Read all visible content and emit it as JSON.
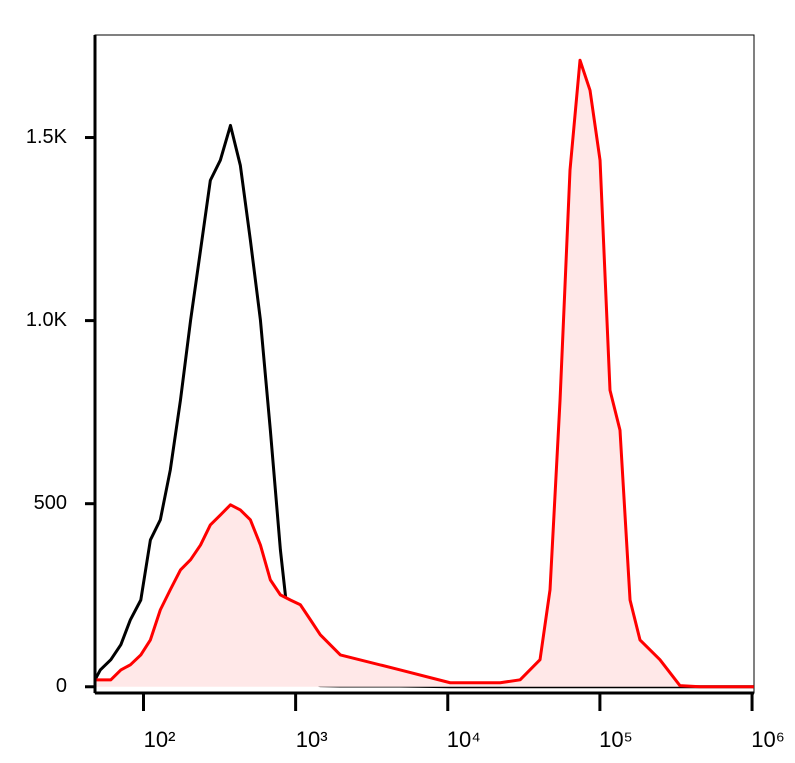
{
  "chart_data": {
    "type": "histogram-overlay",
    "xscale": "log",
    "xlim": [
      48,
      1030000
    ],
    "xticks": [
      {
        "value": 100,
        "label": "10²"
      },
      {
        "value": 1000,
        "label": "10³"
      },
      {
        "value": 10000,
        "label": "10⁴"
      },
      {
        "value": 100000,
        "label": "10⁵"
      },
      {
        "value": 1000000,
        "label": "10⁶"
      }
    ],
    "ylim": [
      -17,
      1780
    ],
    "yticks": [
      0,
      500,
      {
        "value": 1000,
        "label": "1.0K"
      },
      {
        "value": 1500,
        "label": "1.5K"
      }
    ],
    "x": [
      48,
      52,
      61,
      71,
      82,
      96,
      111,
      129,
      150,
      175,
      204,
      237,
      275,
      320,
      373,
      433,
      504,
      587,
      682,
      794,
      923,
      1074,
      1250,
      1453,
      1968,
      4870,
      10370,
      22100,
      29900,
      40400,
      47000,
      54700,
      63600,
      74000,
      86100,
      100200,
      116500,
      135500,
      157800,
      183400,
      248000,
      336000,
      454000,
      1028000
    ],
    "series": [
      {
        "color": "#000000",
        "fill": "none",
        "values": [
          19,
          46,
          74,
          115,
          183,
          237,
          401,
          456,
          592,
          783,
          1001,
          1192,
          1383,
          1438,
          1533,
          1424,
          1220,
          1001,
          701,
          374,
          128,
          33,
          11,
          3,
          2,
          2,
          0,
          0,
          0,
          0,
          0,
          0,
          0,
          0,
          0,
          0,
          0,
          0,
          0,
          0,
          0,
          0,
          0,
          0
        ]
      },
      {
        "color": "#ff0000",
        "fill": "#ffe8e8",
        "values": [
          19,
          19,
          19,
          46,
          60,
          87,
          128,
          210,
          265,
          319,
          347,
          387,
          442,
          469,
          497,
          483,
          456,
          387,
          292,
          251,
          237,
          224,
          183,
          142,
          87,
          46,
          11,
          11,
          19,
          74,
          265,
          783,
          1411,
          1711,
          1629,
          1438,
          810,
          701,
          237,
          128,
          74,
          3,
          0,
          0
        ]
      }
    ]
  }
}
